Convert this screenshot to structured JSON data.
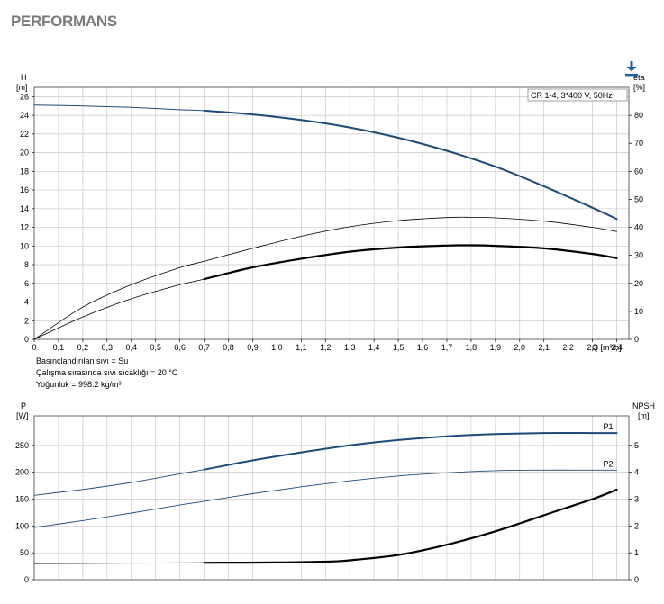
{
  "page": {
    "title": "PERFORMANS",
    "download_icon": "download-icon"
  },
  "notes": {
    "fluid": "Basınçlandırılan sıvı = Su",
    "temperature": "Çalışma sırasında sıvı sıcaklığı = 20 °C",
    "density": "Yoğunluk = 998.2 kg/m³"
  },
  "colors": {
    "blue": "#1e4a7a",
    "black": "#000000",
    "grid": "#c8c8c8",
    "frame": "#555555"
  },
  "chart_data": [
    {
      "type": "line",
      "legend": "CR 1-4, 3*400 V, 50Hz",
      "grid": true,
      "x_unit": "Q [m³/h]",
      "y_left_label": "H",
      "y_left_unit": "[m]",
      "y_right_label": "eta",
      "y_right_unit": "[%]",
      "xlim": [
        0,
        2.45
      ],
      "ylim_left": [
        0,
        27
      ],
      "ylim_right": [
        0,
        90
      ],
      "x_ticks": [
        "0",
        "0,1",
        "0,2",
        "0,3",
        "0,4",
        "0,5",
        "0,6",
        "0,7",
        "0,8",
        "0,9",
        "1,0",
        "1,1",
        "1,2",
        "1,3",
        "1,4",
        "1,5",
        "1,6",
        "1,7",
        "1,8",
        "1,9",
        "2,0",
        "2,1",
        "2,2",
        "2,3",
        "2,4"
      ],
      "y_left_ticks": [
        "0",
        "2",
        "4",
        "6",
        "8",
        "10",
        "12",
        "14",
        "16",
        "18",
        "20",
        "22",
        "24",
        "26"
      ],
      "y_right_ticks": [
        "0",
        "10",
        "20",
        "30",
        "40",
        "50",
        "60",
        "70",
        "80"
      ],
      "series": [
        {
          "color": "#1e4a7a",
          "axis": "left",
          "x": [
            0,
            0.2,
            0.4,
            0.6,
            0.7,
            0.9,
            1.1,
            1.3,
            1.5,
            1.7,
            1.9,
            2.1,
            2.3,
            2.4
          ],
          "y": [
            25.1,
            25.0,
            24.85,
            24.6,
            24.5,
            24.1,
            23.5,
            22.7,
            21.6,
            20.2,
            18.5,
            16.4,
            14.1,
            12.9
          ],
          "line_width": [
            1.0,
            2.0
          ],
          "bold_from": 0.7
        },
        {
          "color": "#000000",
          "axis": "right",
          "x": [
            0,
            0.2,
            0.4,
            0.6,
            0.7,
            0.9,
            1.1,
            1.3,
            1.5,
            1.7,
            1.8,
            1.9,
            2.1,
            2.3,
            2.4
          ],
          "y": [
            0,
            8,
            14.5,
            19.5,
            21.5,
            25.7,
            28.8,
            31.3,
            32.8,
            33.5,
            33.6,
            33.4,
            32.5,
            30.5,
            29.0
          ],
          "line_width": [
            0.8,
            2.2
          ],
          "bold_from": 0.7
        },
        {
          "color": "#000000",
          "axis": "right",
          "x": [
            0,
            0.2,
            0.4,
            0.6,
            0.7,
            0.9,
            1.1,
            1.3,
            1.5,
            1.7,
            1.8,
            1.9,
            2.1,
            2.3,
            2.4
          ],
          "y": [
            0,
            11.5,
            19.5,
            25.6,
            27.9,
            32.5,
            36.8,
            40.2,
            42.4,
            43.5,
            43.6,
            43.4,
            42.2,
            40.0,
            38.5
          ],
          "line_width": [
            0.8,
            1.2
          ]
        }
      ]
    },
    {
      "type": "line",
      "grid": true,
      "y_left_label": "P",
      "y_left_unit": "[W]",
      "y_right_label": "NPSH",
      "y_right_unit": "[m]",
      "xlim": [
        0,
        2.45
      ],
      "ylim_left": [
        0,
        305
      ],
      "ylim_right": [
        0,
        6.1
      ],
      "y_left_ticks": [
        "0",
        "50",
        "100",
        "150",
        "200",
        "250"
      ],
      "y_right_ticks": [
        "0",
        "1",
        "2",
        "3",
        "4",
        "5"
      ],
      "series": [
        {
          "name": "P1",
          "color": "#1e4a7a",
          "axis": "left",
          "x": [
            0,
            0.2,
            0.4,
            0.6,
            0.7,
            0.9,
            1.1,
            1.3,
            1.5,
            1.7,
            1.9,
            2.1,
            2.3,
            2.4
          ],
          "y": [
            157,
            168,
            181,
            197,
            205,
            222,
            237,
            250,
            260,
            267,
            271,
            273,
            273,
            273
          ],
          "line_width": [
            0.9,
            2.0
          ],
          "bold_from": 0.7
        },
        {
          "name": "P2",
          "color": "#1e4a7a",
          "axis": "left",
          "x": [
            0,
            0.2,
            0.4,
            0.6,
            0.7,
            0.9,
            1.1,
            1.3,
            1.5,
            1.7,
            1.9,
            2.1,
            2.3,
            2.4
          ],
          "y": [
            97,
            110,
            124,
            139,
            146,
            160,
            173,
            184,
            193,
            199,
            203,
            204,
            204,
            204
          ],
          "line_width": [
            0.9,
            1.2
          ]
        },
        {
          "color": "#000000",
          "axis": "right",
          "x": [
            0,
            0.5,
            0.7,
            1.0,
            1.2,
            1.3,
            1.5,
            1.7,
            1.9,
            2.1,
            2.3,
            2.4
          ],
          "y": [
            0.6,
            0.62,
            0.63,
            0.64,
            0.67,
            0.72,
            0.92,
            1.3,
            1.8,
            2.4,
            3.0,
            3.35
          ],
          "line_width": [
            0.9,
            2.2
          ],
          "bold_from": 0.7
        }
      ]
    }
  ]
}
